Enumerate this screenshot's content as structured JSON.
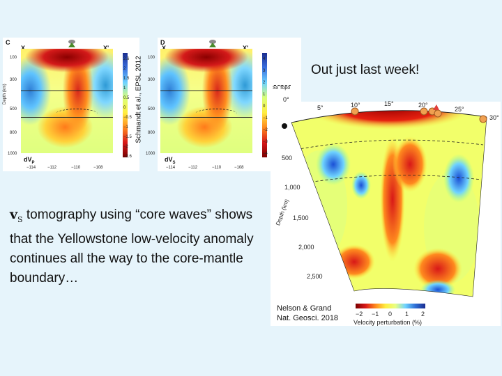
{
  "left_figure": {
    "panel_c": {
      "letter": "C",
      "x_label": "X",
      "xp_label": "X'",
      "corner_label": "dV",
      "corner_sub": "P",
      "depth_axis": "Depth (km)",
      "depth_ticks": [
        "100",
        "300",
        "500",
        "800",
        "1000"
      ],
      "lon_ticks": [
        "−114",
        "−112",
        "−110",
        "−108"
      ],
      "cbar_ticks": [
        "2.6",
        "2",
        "1.5",
        "1",
        "0.5",
        "0",
        "−0.5",
        "−1",
        "−1.5",
        "−2",
        "−2.6"
      ]
    },
    "panel_d": {
      "letter": "D",
      "x_label": "X",
      "xp_label": "X'",
      "corner_label": "dV",
      "corner_sub": "S",
      "depth_ticks": [
        "100",
        "300",
        "500",
        "800",
        "1000"
      ],
      "lon_ticks": [
        "−114",
        "−112",
        "−110",
        "−108"
      ],
      "cbar_ticks": [
        "4",
        "3",
        "2",
        "1",
        "0",
        "−1",
        "−2",
        "−3",
        "−4"
      ],
      "legend": "Sx Topo"
    },
    "credit": "Schmandt et al., EPSL 2012"
  },
  "headline": "Out just last week!",
  "body": {
    "vs_letter": "v",
    "vs_sub": "S",
    "text": " tomography using “core waves” shows that the Yellowstone low-velocity anomaly continues all the way to the core-mantle boundary…"
  },
  "right_figure": {
    "lat_ticks": [
      "0°",
      "5°",
      "10°",
      "15°",
      "20°",
      "25°",
      "30°"
    ],
    "depth_axis": "Depth (km)",
    "depth_ticks": [
      "500",
      "1,000",
      "1,500",
      "2,000",
      "2,500"
    ],
    "credit_line1": "Nelson & Grand",
    "credit_line2": "Nat. Geosci. 2018",
    "colorbar_ticks": [
      "−2",
      "−1",
      "0",
      "1",
      "2"
    ],
    "colorbar_label": "Velocity perturbation (%)"
  }
}
